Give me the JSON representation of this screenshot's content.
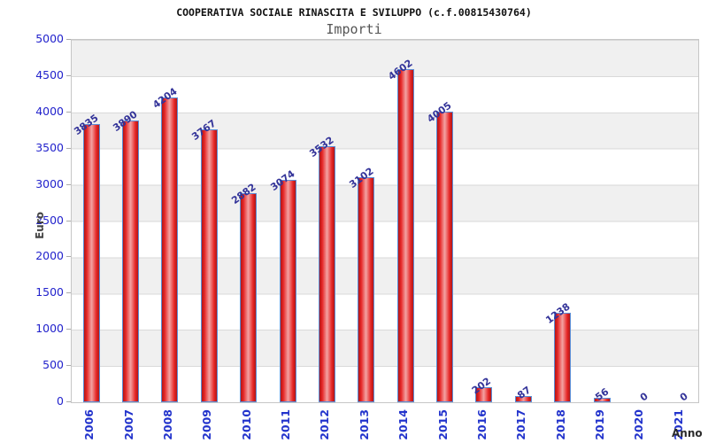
{
  "chart_data": {
    "type": "bar",
    "title": "COOPERATIVA SOCIALE RINASCITA E SVILUPPO (c.f.00815430764)",
    "subtitle": "Importi",
    "xlabel": "Anno",
    "ylabel": "Euro",
    "categories": [
      "2006",
      "2007",
      "2008",
      "2009",
      "2010",
      "2011",
      "2012",
      "2013",
      "2014",
      "2015",
      "2016",
      "2017",
      "2018",
      "2019",
      "2020",
      "2021"
    ],
    "values": [
      3835,
      3890,
      4204,
      3767,
      2882,
      3074,
      3532,
      3102,
      4602,
      4005,
      202,
      87,
      1238,
      56,
      0,
      0
    ],
    "ylim": [
      0,
      5000
    ],
    "ytick_step": 500,
    "yticks": [
      0,
      500,
      1000,
      1500,
      2000,
      2500,
      3000,
      3500,
      4000,
      4500,
      5000
    ],
    "grid": "horizontal gridlines with alternating gray/white 500-unit bands",
    "legend": "none",
    "colors": {
      "bar_fill": "#e62525",
      "bar_fill_dark_edge": "#b01717",
      "bar_fill_highlight": "#f3a3a3",
      "bar_border": "#5c8ed6",
      "axis_tick_label": "#2222cc",
      "value_label": "#333399",
      "title_text": "#111111",
      "subtitle_text": "#555555",
      "axis_title_text": "#444444",
      "band_gray": "#f0f0f0",
      "gridline": "#d9d9d9",
      "plot_border": "#c6c6c6",
      "background": "#ffffff"
    }
  }
}
